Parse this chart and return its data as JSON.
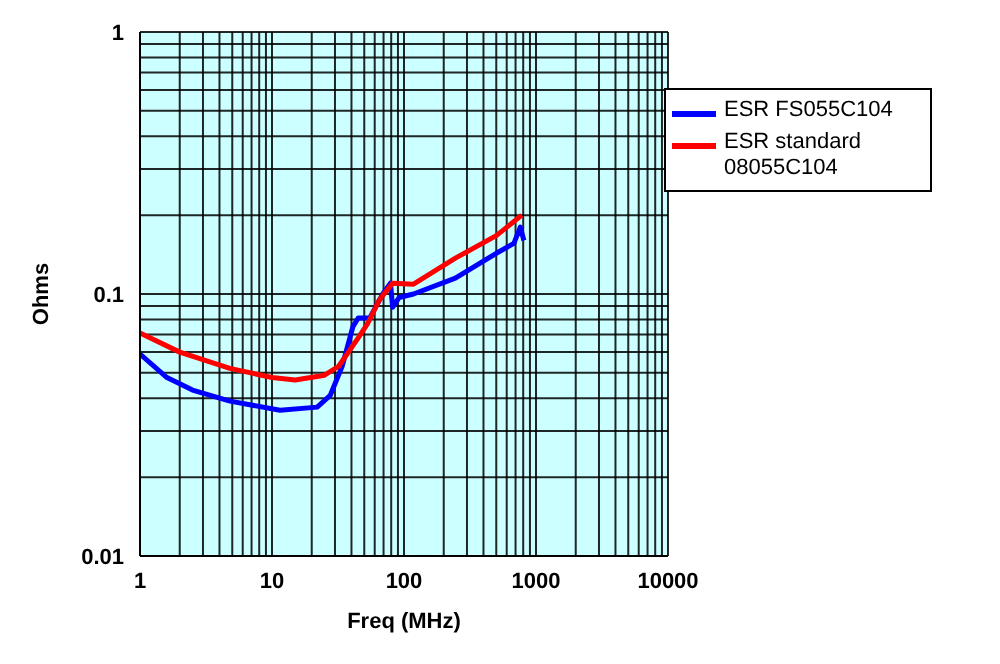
{
  "chart_data": {
    "type": "line",
    "xlabel": "Freq (MHz)",
    "ylabel": "Ohms",
    "log": "xy",
    "grid": true,
    "legend": "top right",
    "marker": "none",
    "line_style": "solid",
    "xlim": [
      1,
      10000
    ],
    "ylim": [
      0.01,
      1
    ],
    "xticks": [
      1,
      {
        "value": 2,
        "label": null
      },
      {
        "value": 3,
        "label": null
      },
      {
        "value": 4,
        "label": null
      },
      {
        "value": 5,
        "label": null
      },
      {
        "value": 6,
        "label": null
      },
      {
        "value": 7,
        "label": null
      },
      {
        "value": 8,
        "label": null
      },
      {
        "value": 9,
        "label": null
      },
      10,
      {
        "value": 20,
        "label": null
      },
      {
        "value": 30,
        "label": null
      },
      {
        "value": 40,
        "label": null
      },
      {
        "value": 50,
        "label": null
      },
      {
        "value": 60,
        "label": null
      },
      {
        "value": 70,
        "label": null
      },
      {
        "value": 80,
        "label": null
      },
      {
        "value": 90,
        "label": null
      },
      100,
      {
        "value": 200,
        "label": null
      },
      {
        "value": 300,
        "label": null
      },
      {
        "value": 400,
        "label": null
      },
      {
        "value": 500,
        "label": null
      },
      {
        "value": 600,
        "label": null
      },
      {
        "value": 700,
        "label": null
      },
      {
        "value": 800,
        "label": null
      },
      {
        "value": 900,
        "label": null
      },
      1000,
      {
        "value": 2000,
        "label": null
      },
      {
        "value": 3000,
        "label": null
      },
      {
        "value": 4000,
        "label": null
      },
      {
        "value": 5000,
        "label": null
      },
      {
        "value": 6000,
        "label": null
      },
      {
        "value": 7000,
        "label": null
      },
      {
        "value": 8000,
        "label": null
      },
      {
        "value": 9000,
        "label": null
      },
      10000
    ],
    "yticks": [
      0.01,
      {
        "value": 0.02,
        "label": null
      },
      {
        "value": 0.03,
        "label": null
      },
      {
        "value": 0.04,
        "label": null
      },
      {
        "value": 0.05,
        "label": null
      },
      {
        "value": 0.06,
        "label": null
      },
      {
        "value": 0.07,
        "label": null
      },
      {
        "value": 0.08,
        "label": null
      },
      {
        "value": 0.09,
        "label": null
      },
      0.1,
      {
        "value": 0.2,
        "label": null
      },
      {
        "value": 0.3,
        "label": null
      },
      {
        "value": 0.4,
        "label": null
      },
      {
        "value": 0.5,
        "label": null
      },
      {
        "value": 0.6,
        "label": null
      },
      {
        "value": 0.7,
        "label": null
      },
      {
        "value": 0.8,
        "label": null
      },
      {
        "value": 0.9,
        "label": null
      },
      1
    ],
    "series": [
      {
        "name": "ESR FS055C104",
        "color": "#0000ff",
        "x": [
          1,
          1.6,
          2.5,
          4.8,
          11.5,
          22,
          27.6,
          34,
          41,
          45,
          55,
          69,
          79,
          82,
          92,
          118,
          245,
          500,
          680,
          760,
          810
        ],
        "values": [
          0.059,
          0.048,
          0.043,
          0.039,
          0.036,
          0.037,
          0.041,
          0.053,
          0.075,
          0.081,
          0.081,
          0.1,
          0.11,
          0.089,
          0.097,
          0.1,
          0.115,
          0.143,
          0.156,
          0.18,
          0.16
        ]
      },
      {
        "name": "ESR standard 08055C104",
        "color": "#ff0000",
        "x": [
          1,
          2,
          4.8,
          10,
          15,
          25,
          32,
          45,
          53,
          65,
          82,
          118,
          245,
          500,
          780
        ],
        "values": [
          0.071,
          0.06,
          0.052,
          0.048,
          0.047,
          0.049,
          0.053,
          0.068,
          0.077,
          0.095,
          0.11,
          0.109,
          0.137,
          0.167,
          0.2
        ]
      }
    ]
  }
}
